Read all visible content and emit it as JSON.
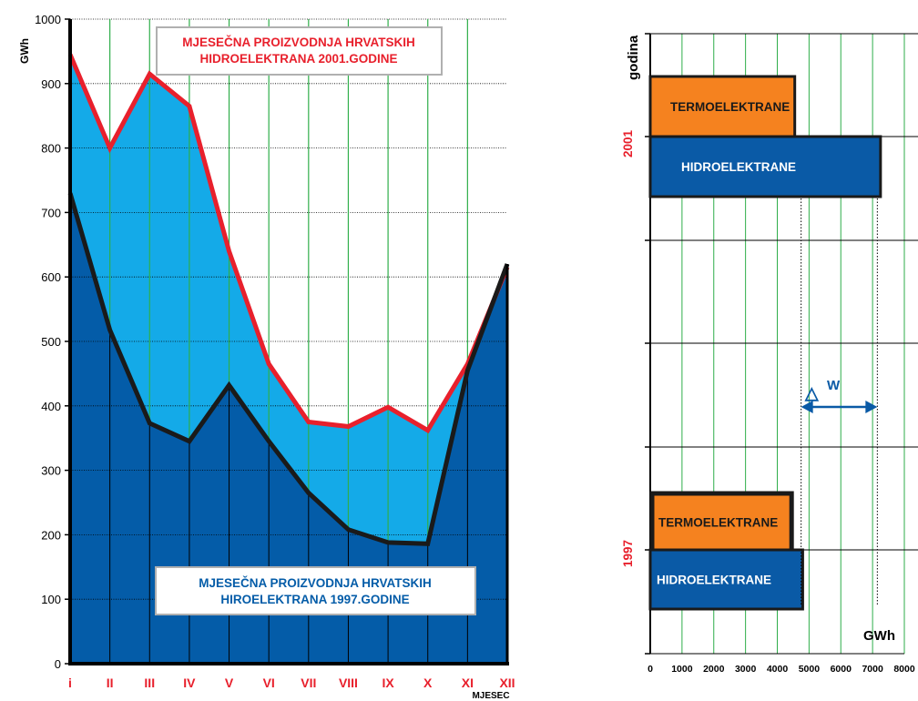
{
  "colors": {
    "hydro_1997_fill": "#045ca8",
    "hydro_2001_fill": "#14aae8",
    "line_2001": "#e8202c",
    "line_1997": "#1a1a1a",
    "grid_green": "#2fae4a",
    "thermo_bar": "#f5821f",
    "hydro_bar": "#0a5aa6",
    "month_label": "#e8202c",
    "year_label": "#e8202c",
    "delta_arrow": "#0a5aa6"
  },
  "chart_data": [
    {
      "type": "area",
      "ylabel": "GWh",
      "xlabel": "MJESEC",
      "ylim": [
        0,
        1000
      ],
      "yticks": [
        "0",
        "100",
        "200",
        "300",
        "400",
        "500",
        "600",
        "700",
        "800",
        "900",
        "1000"
      ],
      "categories": [
        "i",
        "II",
        "III",
        "IV",
        "V",
        "VI",
        "VII",
        "VIII",
        "IX",
        "X",
        "XI",
        "XII"
      ],
      "series": [
        {
          "name": "MJESEČNA PROIZVODNJA HRVATSKIH HIDROELEKTRANA 2001.GODINE",
          "values": [
            945,
            800,
            915,
            865,
            640,
            465,
            375,
            368,
            398,
            362,
            465,
            615
          ]
        },
        {
          "name": "MJESEČNA PROIZVODNJA HRVATSKIH HIROELEKTRANA 1997.GODINE",
          "values": [
            730,
            518,
            373,
            345,
            432,
            345,
            265,
            208,
            188,
            186,
            455,
            620
          ]
        }
      ],
      "annotations": {
        "box_2001": [
          "MJESEČNA PROIZVODNJA HRVATSKIH",
          "HIDROELEKTRANA 2001.GODINE"
        ],
        "box_1997": [
          "MJESEČNA PROIZVODNJA HRVATSKIH",
          "HIROELEKTRANA 1997.GODINE"
        ]
      }
    },
    {
      "type": "bar",
      "orientation": "horizontal",
      "ylabel": "godina",
      "xlabel": "GWh",
      "xlim": [
        0,
        8000
      ],
      "xticks": [
        "0",
        "1000",
        "2000",
        "3000",
        "4000",
        "5000",
        "6000",
        "7000",
        "8000"
      ],
      "groups": [
        {
          "year": "2001",
          "bars": [
            {
              "label": "TERMOELEKTRANE",
              "value": 4550
            },
            {
              "label": "HIDROELEKTRANE",
              "value": 7250
            }
          ]
        },
        {
          "year": "1997",
          "bars": [
            {
              "label": "TERMOELEKTRANE",
              "value": 4450
            },
            {
              "label": "HIDROELEKTRANE",
              "value": 4800
            }
          ]
        }
      ],
      "annotation": {
        "label": "W",
        "symbol": "△",
        "from": 4750,
        "to": 7150
      }
    }
  ]
}
